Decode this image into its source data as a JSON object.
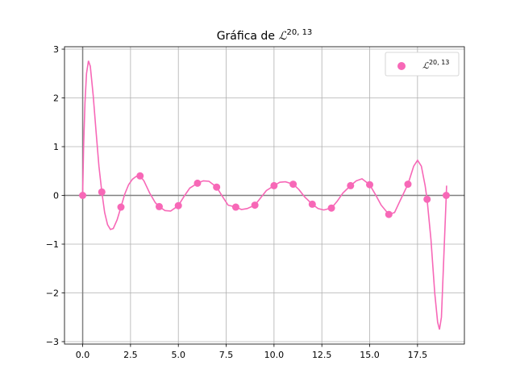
{
  "chart_data": {
    "type": "scatter",
    "title": "Gráfica de ",
    "title_symbol": "ℒ",
    "superscript": "20, 13",
    "legend_label_symbol": "ℒ",
    "legend_superscript": "20, 13",
    "legend_position": "top-right",
    "grid": true,
    "xlim": [
      -0.95,
      19.95
    ],
    "ylim": [
      -3.05,
      3.05
    ],
    "x_ticks": [
      0.0,
      2.5,
      5.0,
      7.5,
      10.0,
      12.5,
      15.0,
      17.5
    ],
    "x_tick_labels": [
      "0.0",
      "2.5",
      "5.0",
      "7.5",
      "10.0",
      "12.5",
      "15.0",
      "17.5"
    ],
    "y_ticks": [
      3,
      2,
      1,
      0,
      -1,
      -2,
      -3
    ],
    "y_tick_labels": [
      "3",
      "2",
      "1",
      "0",
      "−1",
      "−2",
      "−3"
    ],
    "color": "#f768b7",
    "points": [
      {
        "x": 0,
        "y": 0.0
      },
      {
        "x": 1,
        "y": 0.07
      },
      {
        "x": 2,
        "y": -0.24
      },
      {
        "x": 3,
        "y": 0.4
      },
      {
        "x": 4,
        "y": -0.23
      },
      {
        "x": 5,
        "y": -0.21
      },
      {
        "x": 6,
        "y": 0.25
      },
      {
        "x": 7,
        "y": 0.17
      },
      {
        "x": 8,
        "y": -0.24
      },
      {
        "x": 9,
        "y": -0.2
      },
      {
        "x": 10,
        "y": 0.2
      },
      {
        "x": 11,
        "y": 0.23
      },
      {
        "x": 12,
        "y": -0.18
      },
      {
        "x": 13,
        "y": -0.26
      },
      {
        "x": 14,
        "y": 0.2
      },
      {
        "x": 15,
        "y": 0.22
      },
      {
        "x": 16,
        "y": -0.39
      },
      {
        "x": 17,
        "y": 0.23
      },
      {
        "x": 18,
        "y": -0.08
      },
      {
        "x": 19,
        "y": 0.0
      }
    ],
    "curve": [
      [
        0.0,
        0.0
      ],
      [
        0.05,
        1.0
      ],
      [
        0.12,
        1.9
      ],
      [
        0.2,
        2.5
      ],
      [
        0.3,
        2.76
      ],
      [
        0.4,
        2.65
      ],
      [
        0.55,
        2.05
      ],
      [
        0.7,
        1.3
      ],
      [
        0.85,
        0.6
      ],
      [
        1.0,
        0.07
      ],
      [
        1.15,
        -0.35
      ],
      [
        1.3,
        -0.6
      ],
      [
        1.45,
        -0.7
      ],
      [
        1.6,
        -0.68
      ],
      [
        1.8,
        -0.5
      ],
      [
        2.0,
        -0.24
      ],
      [
        2.2,
        0.03
      ],
      [
        2.4,
        0.22
      ],
      [
        2.6,
        0.33
      ],
      [
        2.8,
        0.39
      ],
      [
        3.0,
        0.4
      ],
      [
        3.2,
        0.3
      ],
      [
        3.5,
        0.05
      ],
      [
        3.8,
        -0.15
      ],
      [
        4.0,
        -0.23
      ],
      [
        4.3,
        -0.31
      ],
      [
        4.6,
        -0.32
      ],
      [
        5.0,
        -0.21
      ],
      [
        5.3,
        -0.02
      ],
      [
        5.6,
        0.15
      ],
      [
        6.0,
        0.25
      ],
      [
        6.3,
        0.3
      ],
      [
        6.6,
        0.29
      ],
      [
        7.0,
        0.17
      ],
      [
        7.3,
        -0.02
      ],
      [
        7.6,
        -0.2
      ],
      [
        8.0,
        -0.24
      ],
      [
        8.3,
        -0.29
      ],
      [
        8.6,
        -0.27
      ],
      [
        9.0,
        -0.2
      ],
      [
        9.3,
        -0.05
      ],
      [
        9.6,
        0.1
      ],
      [
        10.0,
        0.2
      ],
      [
        10.3,
        0.27
      ],
      [
        10.6,
        0.28
      ],
      [
        11.0,
        0.23
      ],
      [
        11.3,
        0.12
      ],
      [
        11.6,
        -0.03
      ],
      [
        12.0,
        -0.18
      ],
      [
        12.3,
        -0.27
      ],
      [
        12.6,
        -0.3
      ],
      [
        13.0,
        -0.26
      ],
      [
        13.3,
        -0.12
      ],
      [
        13.6,
        0.05
      ],
      [
        14.0,
        0.2
      ],
      [
        14.3,
        0.3
      ],
      [
        14.6,
        0.34
      ],
      [
        15.0,
        0.22
      ],
      [
        15.3,
        0.02
      ],
      [
        15.6,
        -0.2
      ],
      [
        16.0,
        -0.39
      ],
      [
        16.3,
        -0.35
      ],
      [
        16.6,
        -0.1
      ],
      [
        17.0,
        0.23
      ],
      [
        17.3,
        0.6
      ],
      [
        17.5,
        0.72
      ],
      [
        17.7,
        0.6
      ],
      [
        17.9,
        0.2
      ],
      [
        18.0,
        -0.08
      ],
      [
        18.2,
        -0.9
      ],
      [
        18.4,
        -2.0
      ],
      [
        18.55,
        -2.6
      ],
      [
        18.65,
        -2.75
      ],
      [
        18.75,
        -2.5
      ],
      [
        18.85,
        -1.5
      ],
      [
        19.0,
        0.0
      ],
      [
        19.02,
        0.2
      ]
    ]
  }
}
